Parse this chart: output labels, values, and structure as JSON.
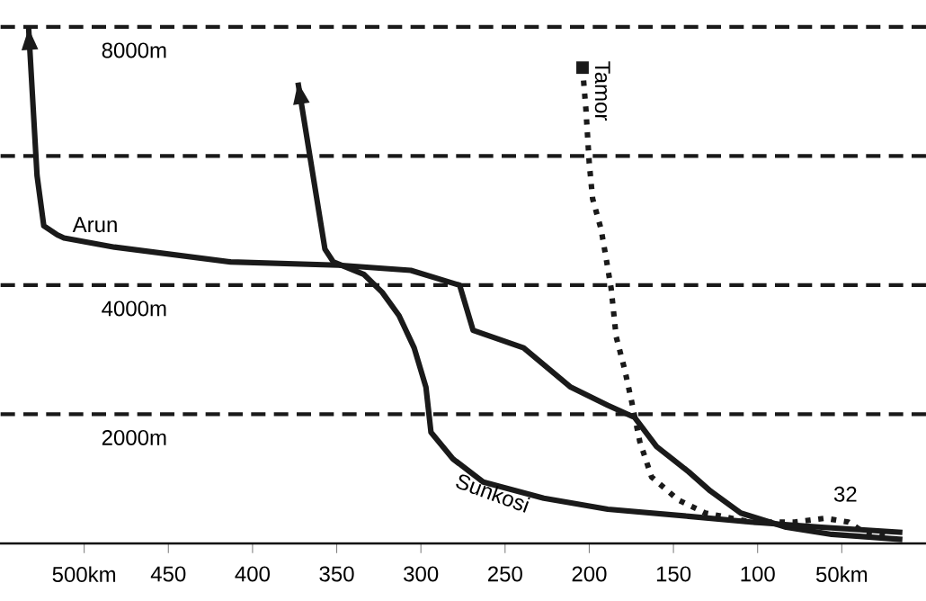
{
  "chart_data": {
    "type": "line",
    "xlim": [
      550,
      0
    ],
    "ylim": [
      0,
      8000
    ],
    "xticks": [
      {
        "value": 500,
        "label": "500km"
      },
      450,
      400,
      350,
      300,
      250,
      200,
      150,
      100,
      {
        "value": 50,
        "label": "50km"
      }
    ],
    "yticks": [
      {
        "value": 2000,
        "label": "2000m"
      },
      {
        "value": 4000,
        "label": "4000m"
      },
      {
        "value": 6000,
        "label": null
      },
      {
        "value": 8000,
        "label": "8000m"
      }
    ],
    "grid": "y",
    "series": [
      {
        "name": "Arun",
        "color": "#1a1a1a",
        "line_style": "solid",
        "x": [
          533,
          528,
          524,
          516,
          512,
          482,
          413,
          349,
          306,
          277,
          269,
          239,
          211,
          189,
          173,
          160,
          141,
          128,
          110,
          83,
          56,
          14
        ],
        "values": [
          7980,
          5700,
          4920,
          4780,
          4730,
          4590,
          4360,
          4310,
          4230,
          4000,
          3300,
          3030,
          2420,
          2140,
          1950,
          1500,
          1110,
          810,
          470,
          250,
          140,
          60
        ]
      },
      {
        "name": "Sunkosi",
        "color": "#1a1a1a",
        "line_style": "solid",
        "x": [
          373,
          357,
          352,
          334,
          323,
          313,
          304,
          297,
          294,
          281,
          263,
          227,
          189,
          141,
          104,
          62,
          14
        ],
        "values": [
          7140,
          4560,
          4360,
          4170,
          3890,
          3530,
          3030,
          2420,
          1720,
          1310,
          950,
          700,
          530,
          420,
          330,
          250,
          170
        ]
      },
      {
        "name": "Tamor",
        "color": "#1a1a1a",
        "line_style": "dotted",
        "x": [
          204,
          202,
          201,
          200,
          198,
          193,
          190,
          187,
          184,
          179,
          175,
          170,
          163,
          147,
          131,
          104,
          78,
          60,
          46,
          38,
          24
        ],
        "values": [
          7370,
          6730,
          6310,
          5890,
          5340,
          4870,
          4420,
          3950,
          3200,
          2700,
          2220,
          1580,
          1030,
          670,
          470,
          330,
          330,
          390,
          330,
          190,
          110
        ]
      }
    ],
    "annotations": [
      "32"
    ]
  }
}
